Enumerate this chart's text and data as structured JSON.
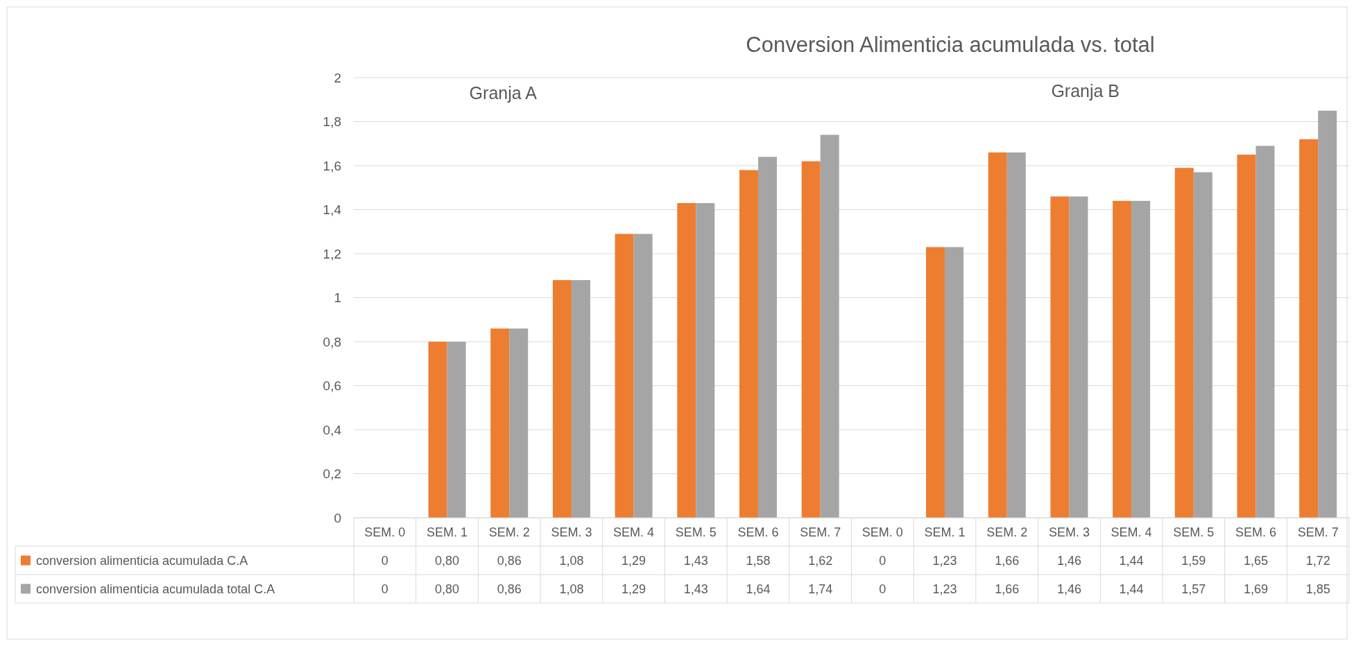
{
  "chart_data": {
    "type": "bar",
    "title": "Conversion Alimenticia acumulada vs. total",
    "categories": [
      "SEM. 0",
      "SEM. 1",
      "SEM. 2",
      "SEM. 3",
      "SEM. 4",
      "SEM. 5",
      "SEM. 6",
      "SEM. 7",
      "SEM. 0",
      "SEM. 1",
      "SEM. 2",
      "SEM. 3",
      "SEM. 4",
      "SEM. 5",
      "SEM. 6",
      "SEM. 7"
    ],
    "series": [
      {
        "name": "conversion alimenticia acumulada C.A",
        "color": "#ed7d31",
        "values": [
          0,
          0.8,
          0.86,
          1.08,
          1.29,
          1.43,
          1.58,
          1.62,
          0,
          1.23,
          1.66,
          1.46,
          1.44,
          1.59,
          1.65,
          1.72
        ],
        "value_labels": [
          "0",
          "0,80",
          "0,86",
          "1,08",
          "1,29",
          "1,43",
          "1,58",
          "1,62",
          "0",
          "1,23",
          "1,66",
          "1,46",
          "1,44",
          "1,59",
          "1,65",
          "1,72"
        ]
      },
      {
        "name": "conversion alimenticia acumulada total C.A",
        "color": "#a5a5a5",
        "values": [
          0,
          0.8,
          0.86,
          1.08,
          1.29,
          1.43,
          1.64,
          1.74,
          0,
          1.23,
          1.66,
          1.46,
          1.44,
          1.57,
          1.69,
          1.85
        ],
        "value_labels": [
          "0",
          "0,80",
          "0,86",
          "1,08",
          "1,29",
          "1,43",
          "1,64",
          "1,74",
          "0",
          "1,23",
          "1,66",
          "1,46",
          "1,44",
          "1,57",
          "1,69",
          "1,85"
        ]
      }
    ],
    "annotations": [
      "Granja A",
      "Granja B"
    ],
    "ylim": [
      0,
      2
    ],
    "yticks": [
      0,
      {
        "value": 0.2,
        "label": "0,2"
      },
      {
        "value": 0.4,
        "label": "0,4"
      },
      {
        "value": 0.6,
        "label": "0,6"
      },
      {
        "value": 0.8,
        "label": "0,8"
      },
      1,
      {
        "value": 1.2,
        "label": "1,2"
      },
      {
        "value": 1.4,
        "label": "1,4"
      },
      {
        "value": 1.6,
        "label": "1,6"
      },
      {
        "value": 1.8,
        "label": "1,8"
      },
      2
    ],
    "grid": "y",
    "legend": "bottom"
  }
}
